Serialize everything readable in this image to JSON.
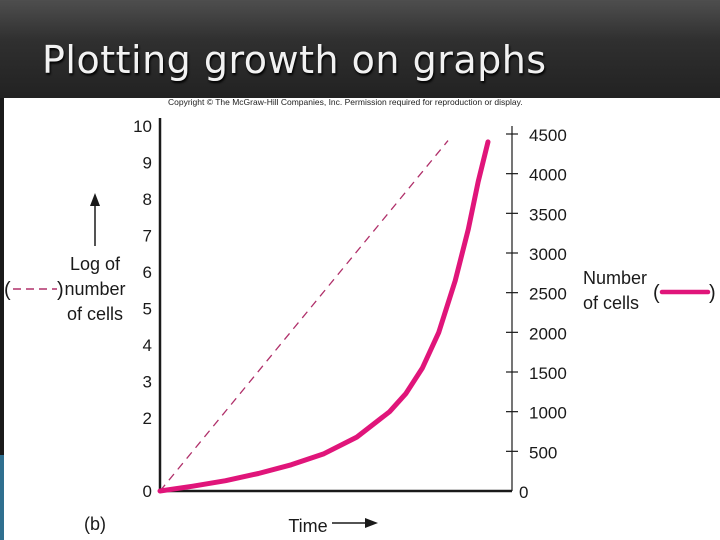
{
  "slide": {
    "title": "Plotting growth on graphs",
    "copyright": "Copyright © The McGraw-Hill Companies, Inc. Permission required for reproduction or display.",
    "panel_label": "(b)"
  },
  "colors": {
    "title_bar": "#2b2b2b",
    "title_text": "#f2f2f2",
    "log_series": "#b0306a",
    "number_series": "#e0157a",
    "axis": "#1a1a1a"
  },
  "chart_data": {
    "type": "line",
    "xlabel": "Time",
    "y_left": {
      "label_lines": [
        "Log of",
        "number",
        "of cells"
      ],
      "ticks": [
        "0",
        "2",
        "3",
        "4",
        "5",
        "6",
        "7",
        "8",
        "9",
        "10"
      ],
      "range": [
        0,
        10
      ]
    },
    "y_right": {
      "label_lines": [
        "Number",
        "of cells"
      ],
      "ticks": [
        "0",
        "500",
        "1000",
        "1500",
        "2000",
        "2500",
        "3000",
        "3500",
        "4000",
        "4500"
      ],
      "range": [
        0,
        4500
      ]
    },
    "series": [
      {
        "axis": "left",
        "style": "dashed",
        "x": [
          0,
          1
        ],
        "y": [
          0,
          9.6
        ]
      },
      {
        "axis": "right",
        "style": "solid",
        "x": [
          0,
          0.1,
          0.2,
          0.3,
          0.4,
          0.5,
          0.6,
          0.7,
          0.75,
          0.8,
          0.85,
          0.9,
          0.94,
          0.97,
          1.0
        ],
        "y": [
          0,
          60,
          130,
          220,
          330,
          470,
          680,
          1000,
          1230,
          1550,
          2000,
          2650,
          3300,
          3900,
          4400
        ]
      }
    ],
    "legend": {
      "left_key": [
        "(",
        ")"
      ],
      "right_key": [
        "(",
        ")"
      ]
    }
  }
}
